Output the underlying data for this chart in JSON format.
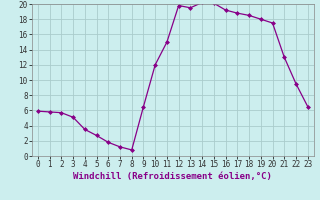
{
  "x": [
    0,
    1,
    2,
    3,
    4,
    5,
    6,
    7,
    8,
    9,
    10,
    11,
    12,
    13,
    14,
    15,
    16,
    17,
    18,
    19,
    20,
    21,
    22,
    23
  ],
  "y": [
    5.9,
    5.8,
    5.7,
    5.1,
    3.5,
    2.7,
    1.8,
    1.2,
    0.8,
    6.5,
    12.0,
    15.0,
    19.8,
    19.5,
    20.2,
    20.1,
    19.2,
    18.8,
    18.5,
    18.0,
    17.5,
    13.0,
    9.5,
    6.5
  ],
  "xlabel": "Windchill (Refroidissement éolien,°C)",
  "ylim": [
    0,
    20
  ],
  "xlim": [
    -0.5,
    23.5
  ],
  "yticks": [
    0,
    2,
    4,
    6,
    8,
    10,
    12,
    14,
    16,
    18,
    20
  ],
  "xticks": [
    0,
    1,
    2,
    3,
    4,
    5,
    6,
    7,
    8,
    9,
    10,
    11,
    12,
    13,
    14,
    15,
    16,
    17,
    18,
    19,
    20,
    21,
    22,
    23
  ],
  "line_color": "#880088",
  "marker": "D",
  "marker_size": 2.0,
  "line_width": 0.9,
  "bg_color": "#cceeee",
  "grid_color": "#aacccc",
  "xlabel_fontsize": 6.5,
  "tick_fontsize": 5.5
}
